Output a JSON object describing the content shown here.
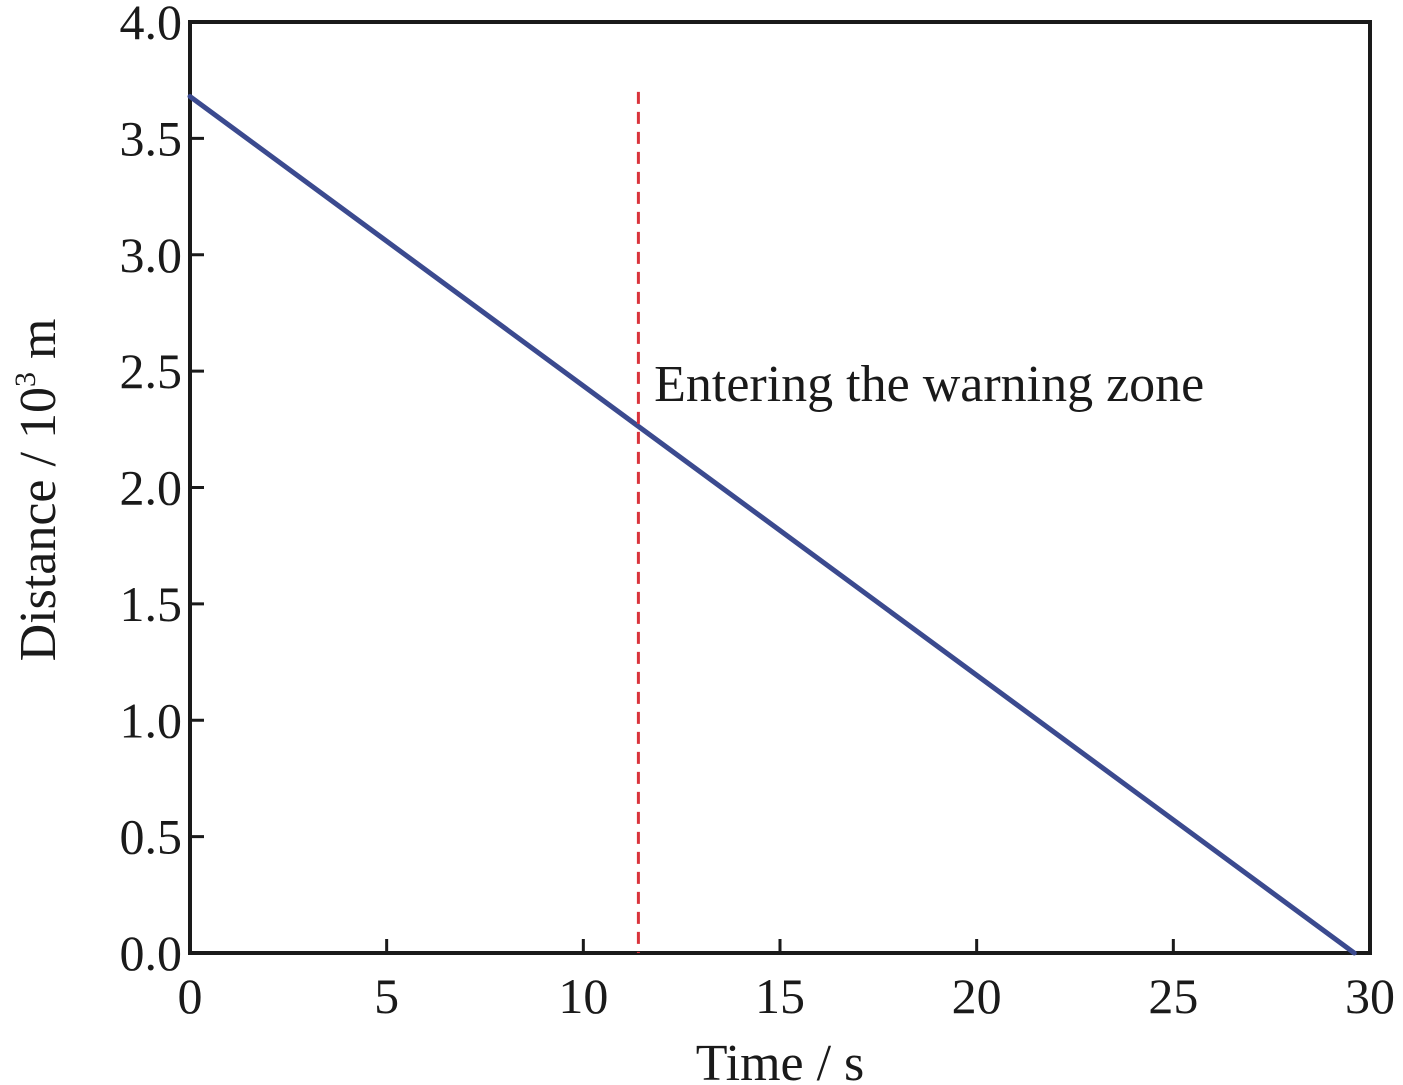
{
  "chart_data": {
    "type": "line",
    "xlabel": "Time / s",
    "ylabel_main": "Distance / 10",
    "ylabel_sup": "3",
    "ylabel_unit": " m",
    "xlim": [
      0,
      30
    ],
    "ylim": [
      0,
      4.0
    ],
    "x_ticks": [
      "0",
      "5",
      "10",
      "15",
      "20",
      "25",
      "30"
    ],
    "y_ticks": [
      "0.0",
      "0.5",
      "1.0",
      "1.5",
      "2.0",
      "2.5",
      "3.0",
      "3.5",
      "4.0"
    ],
    "grid": false,
    "series": [
      {
        "color": "#3b4a8f",
        "x": [
          0,
          29.6
        ],
        "y": [
          3.68,
          0.0
        ]
      }
    ],
    "annotations": [
      {
        "type": "vline",
        "x": 11.4,
        "y_top": 3.7,
        "color": "#d9333b",
        "style": "dashed"
      },
      {
        "type": "text",
        "text": "Entering the warning zone",
        "x": 11.8,
        "y": 2.45
      }
    ]
  }
}
